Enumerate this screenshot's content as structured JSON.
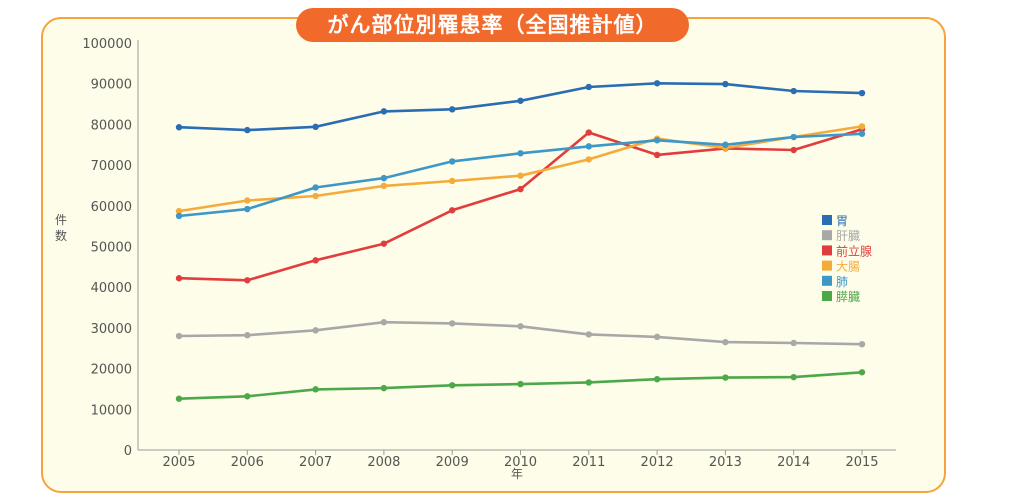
{
  "chart_data": {
    "type": "line",
    "title": "がん部位別罹患率（全国推計値）",
    "xlabel": "年",
    "ylabel": "件数",
    "ylim": [
      0,
      100000
    ],
    "yticks": [
      0,
      10000,
      20000,
      30000,
      40000,
      50000,
      60000,
      70000,
      80000,
      90000,
      100000
    ],
    "categories": [
      "2005",
      "2006",
      "2007",
      "2008",
      "2009",
      "2010",
      "2011",
      "2012",
      "2013",
      "2014",
      "2015"
    ],
    "legend_position": "right",
    "series": [
      {
        "name": "胃",
        "color": "#2a6db3",
        "values": [
          79300,
          78600,
          79400,
          83200,
          83700,
          85800,
          89200,
          90100,
          89900,
          88200,
          87700
        ]
      },
      {
        "name": "肝臓",
        "color": "#a8a8a8",
        "values": [
          28000,
          28200,
          29400,
          31400,
          31100,
          30400,
          28400,
          27800,
          26500,
          26300,
          26000
        ]
      },
      {
        "name": "前立腺",
        "color": "#e23d3d",
        "values": [
          42200,
          41700,
          46600,
          50700,
          58900,
          64100,
          78000,
          72500,
          74100,
          73700,
          78800
        ]
      },
      {
        "name": "大腸",
        "color": "#f5ab3a",
        "values": [
          58700,
          61300,
          62400,
          64900,
          66100,
          67400,
          71400,
          76500,
          74200,
          76900,
          79500
        ]
      },
      {
        "name": "肺",
        "color": "#3d98c8",
        "values": [
          57500,
          59200,
          64500,
          66800,
          70900,
          72900,
          74600,
          76100,
          75000,
          76900,
          77700
        ]
      },
      {
        "name": "膵臓",
        "color": "#4da84a",
        "values": [
          12600,
          13200,
          14900,
          15200,
          15900,
          16200,
          16600,
          17400,
          17800,
          17900,
          19100
        ]
      }
    ]
  }
}
